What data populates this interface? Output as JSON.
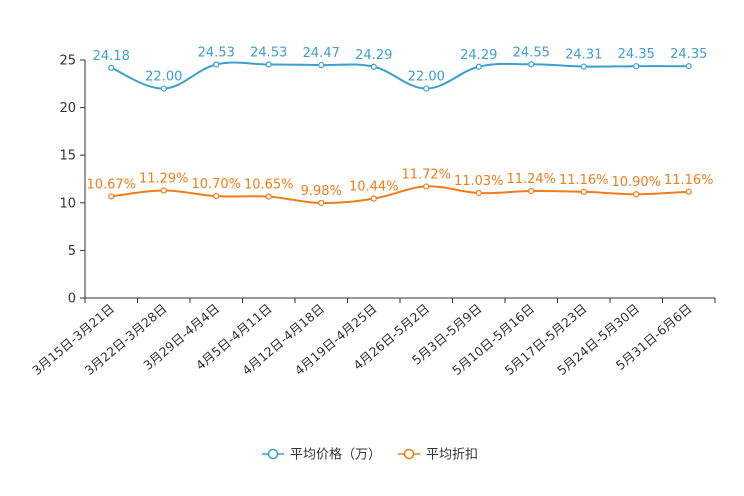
{
  "chart_data": {
    "type": "line",
    "title": "",
    "xlabel": "",
    "ylabel": "",
    "ylim": [
      0,
      25
    ],
    "yticks": [
      0,
      5,
      10,
      15,
      20,
      25
    ],
    "grid": false,
    "legend_position": "bottom",
    "categories": [
      "3月15日-3月21日",
      "3月22日-3月28日",
      "3月29日-4月4日",
      "4月5日-4月11日",
      "4月12日-4月18日",
      "4月19日-4月25日",
      "4月26日-5月2日",
      "5月3日-5月9日",
      "5月10日-5月16日",
      "5月17日-5月23日",
      "5月24日-5月30日",
      "5月31日-6月6日"
    ],
    "series": [
      {
        "name": "平均价格（万）",
        "color": "#3c9fcf",
        "values": [
          24.18,
          22.0,
          24.53,
          24.53,
          24.47,
          24.29,
          22.0,
          24.29,
          24.55,
          24.31,
          24.35,
          24.35
        ],
        "labels": [
          "24.18",
          "22.00",
          "24.53",
          "24.53",
          "24.47",
          "24.29",
          "22.00",
          "24.29",
          "24.55",
          "24.31",
          "24.35",
          "24.35"
        ]
      },
      {
        "name": "平均折扣",
        "color": "#f07d1a",
        "values": [
          10.67,
          11.29,
          10.7,
          10.65,
          9.98,
          10.44,
          11.72,
          11.03,
          11.24,
          11.16,
          10.9,
          11.16
        ],
        "labels": [
          "10.67%",
          "11.29%",
          "10.70%",
          "10.65%",
          "9.98%",
          "10.44%",
          "11.72%",
          "11.03%",
          "11.24%",
          "11.16%",
          "10.90%",
          "11.16%"
        ]
      }
    ]
  }
}
